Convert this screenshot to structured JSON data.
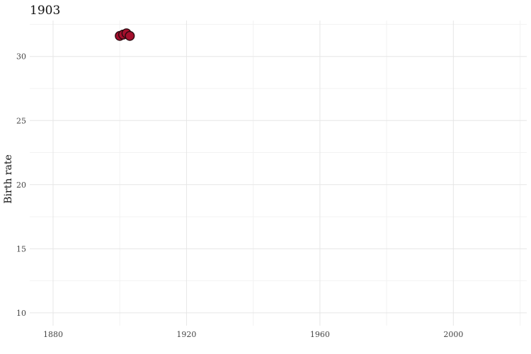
{
  "chart_data": {
    "type": "scatter",
    "title": "1903",
    "xlabel": "",
    "ylabel": "Birth rate",
    "xlim": [
      1873,
      2022
    ],
    "ylim": [
      9,
      32.8
    ],
    "x_ticks": [
      1880,
      1920,
      1960,
      2000
    ],
    "y_ticks": [
      10,
      15,
      20,
      25,
      30
    ],
    "grid": true,
    "legend": "none",
    "point_color": "#a50f2d",
    "series": [
      {
        "x": [
          1900,
          1901,
          1902,
          1903
        ],
        "y": [
          31.6,
          31.7,
          31.8,
          31.6
        ]
      }
    ]
  }
}
